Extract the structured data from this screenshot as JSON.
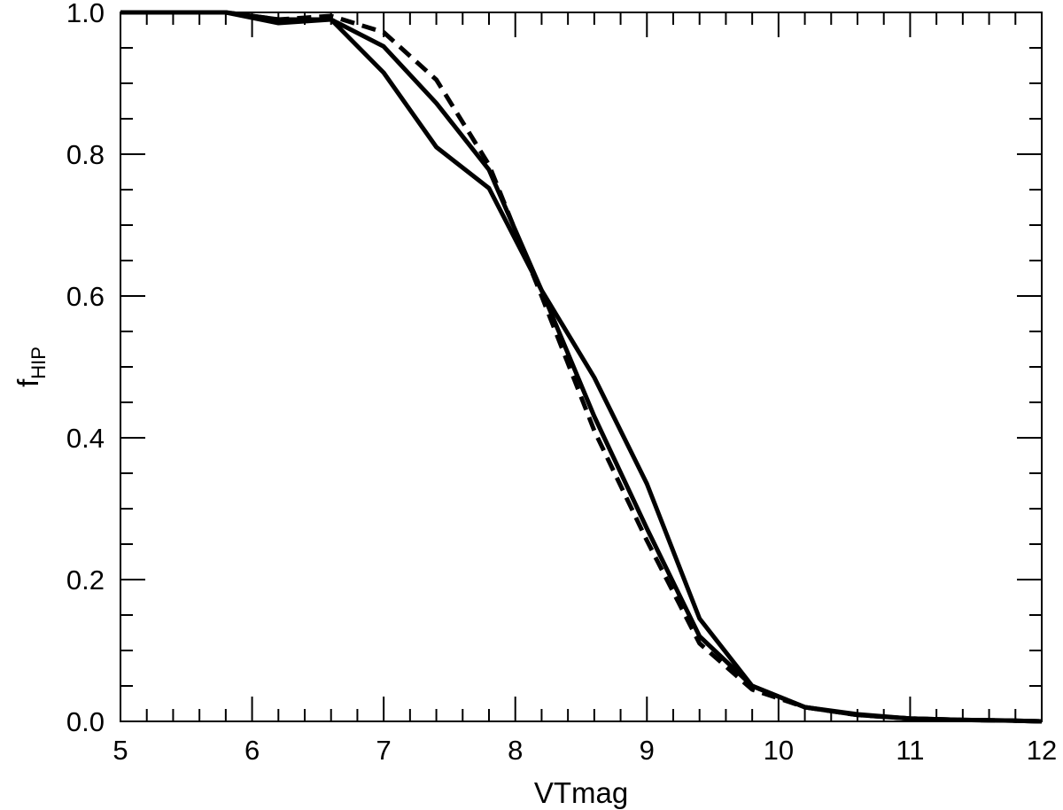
{
  "chart_data": {
    "type": "line",
    "title": "",
    "xlabel": "VTmag",
    "ylabel": "f",
    "ylabel_subscript": "HIP",
    "xlim": [
      5,
      12
    ],
    "ylim": [
      0.0,
      1.0
    ],
    "xticks": [
      "5",
      "6",
      "7",
      "8",
      "9",
      "10",
      "11",
      "12"
    ],
    "yticks": [
      "0.0",
      "0.2",
      "0.4",
      "0.6",
      "0.8",
      "1.0"
    ],
    "grid": false,
    "legend": false,
    "series": [
      {
        "style": "solid",
        "x": [
          5.0,
          5.4,
          5.8,
          6.2,
          6.6,
          7.0,
          7.4,
          7.8,
          8.2,
          8.6,
          9.0,
          9.4,
          9.8,
          10.2,
          10.6,
          11.0,
          11.4,
          11.8,
          12.0
        ],
        "y": [
          1.0,
          1.0,
          1.0,
          0.985,
          0.99,
          0.915,
          0.81,
          0.752,
          0.608,
          0.485,
          0.335,
          0.145,
          0.05,
          0.02,
          0.01,
          0.004,
          0.002,
          0.001,
          0.0
        ]
      },
      {
        "style": "solid",
        "x": [
          5.0,
          5.4,
          5.8,
          6.2,
          6.6,
          7.0,
          7.4,
          7.8,
          8.2,
          8.6,
          9.0,
          9.4,
          9.8,
          10.2,
          10.6,
          11.0,
          11.4,
          11.8,
          12.0
        ],
        "y": [
          1.0,
          1.0,
          1.0,
          0.99,
          0.99,
          0.952,
          0.872,
          0.778,
          0.608,
          0.43,
          0.272,
          0.12,
          0.05,
          0.02,
          0.009,
          0.004,
          0.002,
          0.001,
          0.0
        ]
      },
      {
        "style": "dashed",
        "x": [
          5.0,
          5.4,
          5.8,
          6.2,
          6.6,
          7.0,
          7.4,
          7.8,
          8.2,
          8.6,
          9.0,
          9.4,
          9.8,
          10.2,
          10.6,
          11.0,
          11.4,
          11.8,
          12.0
        ],
        "y": [
          1.0,
          1.0,
          1.0,
          0.99,
          0.995,
          0.972,
          0.905,
          0.785,
          0.6,
          0.41,
          0.255,
          0.11,
          0.045,
          0.02,
          0.009,
          0.004,
          0.002,
          0.001,
          0.0
        ]
      }
    ]
  }
}
